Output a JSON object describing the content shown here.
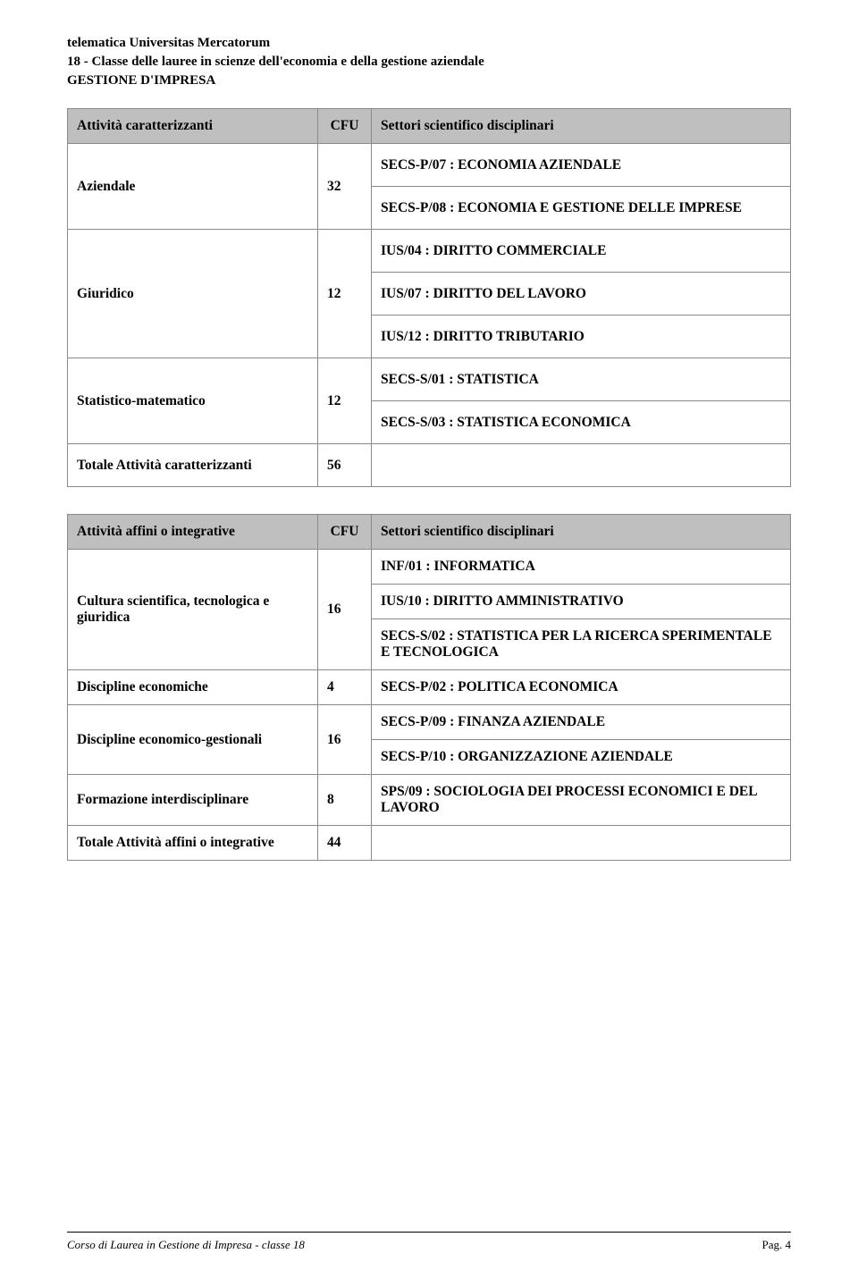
{
  "header": {
    "line1": "telematica Universitas Mercatorum",
    "line2": "18 - Classe delle lauree in scienze dell'economia e della gestione aziendale",
    "line3": "GESTIONE D'IMPRESA"
  },
  "table1": {
    "h1": "Attività caratterizzanti",
    "h2": "CFU",
    "h3": "Settori scientifico disciplinari",
    "r1label": "Aziendale",
    "r1cfu": "32",
    "r1s1": "SECS-P/07 : ECONOMIA AZIENDALE",
    "r1s2": "SECS-P/08 : ECONOMIA E GESTIONE DELLE IMPRESE",
    "r2label": "Giuridico",
    "r2cfu": "12",
    "r2s1": "IUS/04 : DIRITTO COMMERCIALE",
    "r2s2": "IUS/07 : DIRITTO DEL LAVORO",
    "r2s3": "IUS/12 : DIRITTO TRIBUTARIO",
    "r3label": "Statistico-matematico",
    "r3cfu": "12",
    "r3s1": "SECS-S/01 : STATISTICA",
    "r3s2": "SECS-S/03 : STATISTICA ECONOMICA",
    "totlabel": "Totale Attività caratterizzanti",
    "totcfu": "56"
  },
  "table2": {
    "h1": "Attività affini o integrative",
    "h2": "CFU",
    "h3": "Settori scientifico disciplinari",
    "r1label": "Cultura scientifica, tecnologica e giuridica",
    "r1cfu": "16",
    "r1s1": "INF/01 : INFORMATICA",
    "r1s2": "IUS/10 : DIRITTO AMMINISTRATIVO",
    "r1s3": "SECS-S/02 : STATISTICA PER LA RICERCA SPERIMENTALE E TECNOLOGICA",
    "r2label": "Discipline economiche",
    "r2cfu": "4",
    "r2s1": "SECS-P/02 : POLITICA ECONOMICA",
    "r3label": "Discipline economico-gestionali",
    "r3cfu": "16",
    "r3s1": "SECS-P/09 : FINANZA AZIENDALE",
    "r3s2": "SECS-P/10 : ORGANIZZAZIONE AZIENDALE",
    "r4label": "Formazione interdisciplinare",
    "r4cfu": "8",
    "r4s1": "SPS/09 : SOCIOLOGIA DEI PROCESSI ECONOMICI E DEL LAVORO",
    "totlabel": "Totale Attività affini o integrative",
    "totcfu": "44"
  },
  "footer": {
    "left": "Corso di Laurea in Gestione di Impresa - classe 18",
    "right": "Pag. 4"
  },
  "colors": {
    "header_bg": "#bfbfbf",
    "border": "#8a8a8a",
    "page_bg": "#ffffff",
    "text": "#000000"
  }
}
